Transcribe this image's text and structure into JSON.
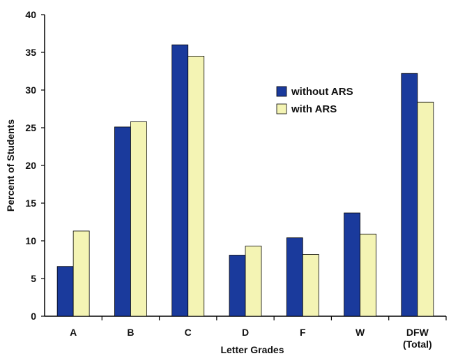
{
  "chart_data": {
    "type": "bar",
    "categories": [
      "A",
      "B",
      "C",
      "D",
      "F",
      "W",
      "DFW\n(Total)"
    ],
    "series": [
      {
        "name": "without ARS",
        "color": "#1a3a9c",
        "values": [
          6.6,
          25.1,
          36.0,
          8.1,
          10.4,
          13.7,
          32.2
        ]
      },
      {
        "name": "with ARS",
        "color": "#f4f4b4",
        "values": [
          11.3,
          25.8,
          34.5,
          9.3,
          8.2,
          10.9,
          28.4
        ]
      }
    ],
    "xlabel": "Letter Grades",
    "ylabel": "Percent of Students",
    "ylim": [
      0,
      40
    ],
    "yticks": [
      0,
      5,
      10,
      15,
      20,
      25,
      30,
      35,
      40
    ],
    "grid": false,
    "legend_position": "top-right-inside"
  }
}
